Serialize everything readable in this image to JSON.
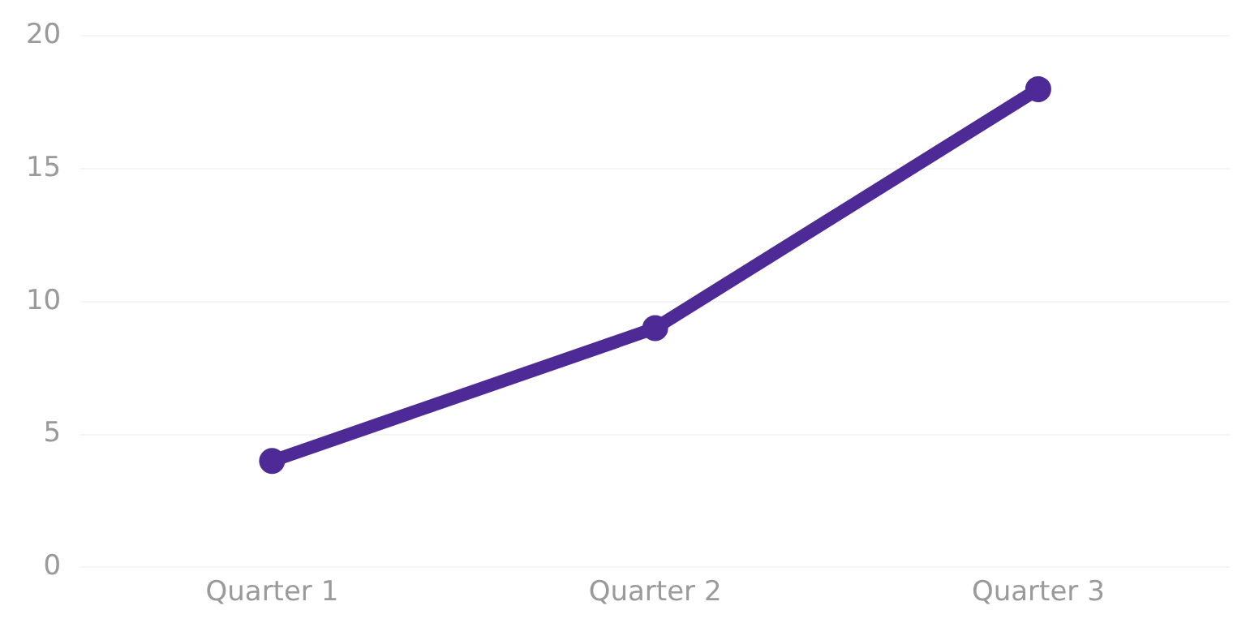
{
  "chart_data": {
    "type": "line",
    "categories": [
      "Quarter 1",
      "Quarter 2",
      "Quarter 3"
    ],
    "series": [
      {
        "color": "#4e2a96",
        "values": [
          4,
          9,
          18
        ]
      }
    ],
    "ylim": [
      0,
      20
    ],
    "yticks": [
      0,
      5,
      10,
      15,
      20
    ],
    "grid": "y",
    "legend": false,
    "marker": "circle",
    "line_style": "solid"
  }
}
